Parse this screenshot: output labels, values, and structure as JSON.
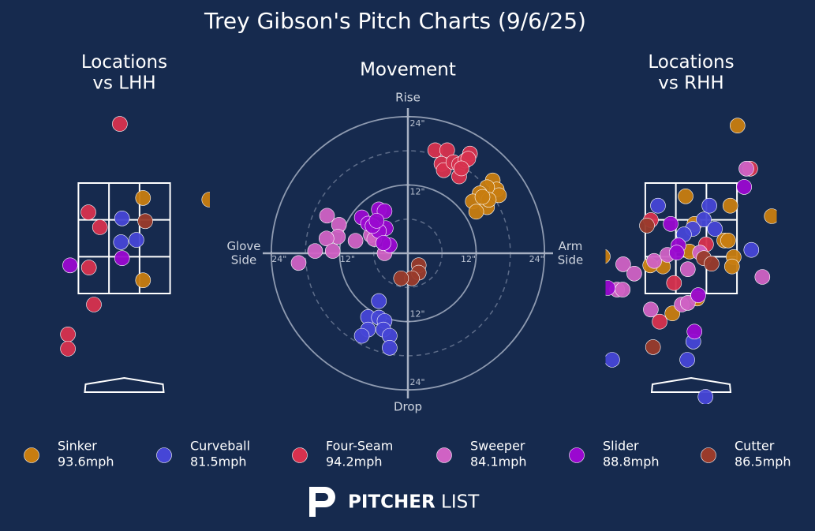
{
  "title": "Trey Gibson's Pitch Charts (9/6/25)",
  "pitches": [
    {
      "name": "Sinker",
      "speed": "93.6mph",
      "color": "#c87d10"
    },
    {
      "name": "Curveball",
      "speed": "81.5mph",
      "color": "#4646d6"
    },
    {
      "name": "Four-Seam",
      "speed": "94.2mph",
      "color": "#d7314e"
    },
    {
      "name": "Sweeper",
      "speed": "84.1mph",
      "color": "#d062c4"
    },
    {
      "name": "Slider",
      "speed": "88.8mph",
      "color": "#9a08d0"
    },
    {
      "name": "Cutter",
      "speed": "86.5mph",
      "color": "#9a3b2b"
    }
  ],
  "logo": [
    "PITCHER",
    "LIST"
  ],
  "chart_data": [
    {
      "type": "location",
      "title": "Locations\nvs LHH",
      "xlim": [
        -1.55,
        1.55
      ],
      "ylim": [
        -0.5,
        5
      ],
      "series": [
        {
          "x": [
            0.34,
            0.34,
            1.54
          ],
          "y": [
            3.23,
            1.74,
            3.2
          ]
        },
        {
          "x": [
            -0.04,
            -0.06,
            0.22
          ],
          "y": [
            2.86,
            2.43,
            2.47
          ]
        },
        {
          "x": [
            -0.08,
            -0.65,
            -0.44,
            -0.64,
            -0.55,
            -1.02,
            -1.02
          ],
          "y": [
            4.57,
            2.97,
            2.7,
            1.97,
            1.3,
            0.76,
            0.5
          ]
        },
        {
          "x": [],
          "y": []
        },
        {
          "x": [
            -0.98,
            -0.04
          ],
          "y": [
            2.01,
            2.14
          ]
        },
        {
          "x": [
            0.38
          ],
          "y": [
            2.81
          ]
        }
      ]
    },
    {
      "type": "movement",
      "title": "Movement",
      "xlim": [
        -25.5,
        25.5
      ],
      "ylim": [
        -25.5,
        25.5
      ],
      "top_label": "Rise",
      "bottom_label": "Drop",
      "left_label": "Glove\nSide",
      "right_label": "Arm\nSide",
      "xticks": [
        {
          "value": -24,
          "label": "24\""
        },
        {
          "value": -12,
          "label": "12\""
        },
        {
          "value": 12,
          "label": "12\""
        },
        {
          "value": 24,
          "label": "24\""
        }
      ],
      "yticks": [
        {
          "value": 24,
          "label": "24\""
        },
        {
          "value": 12,
          "label": "12\""
        },
        {
          "value": -12,
          "label": "12\""
        },
        {
          "value": -24,
          "label": "24\""
        }
      ],
      "series": [
        {
          "x": [
            14.9,
            15.6,
            16.0,
            13.9,
            12.6,
            11.4,
            13.9,
            12.0,
            14.2,
            13.1
          ],
          "y": [
            12.8,
            11.2,
            10.2,
            11.6,
            10.5,
            9.1,
            8.1,
            7.3,
            9.4,
            9.9
          ]
        },
        {
          "x": [
            -5.1,
            -7.0,
            -5.1,
            -4.1,
            -7.0,
            -8.1,
            -4.3,
            -3.2,
            -3.2
          ],
          "y": [
            -8.4,
            -11.2,
            -11.3,
            -11.9,
            -13.4,
            -14.5,
            -13.4,
            -14.5,
            -16.6
          ]
        },
        {
          "x": [
            4.8,
            6.9,
            5.9,
            6.3,
            8.0,
            9.0,
            10.1,
            10.9,
            9.0,
            10.6,
            9.4
          ],
          "y": [
            18.1,
            18.1,
            15.7,
            14.6,
            16.0,
            15.6,
            16.3,
            17.5,
            13.5,
            16.6,
            14.9
          ]
        },
        {
          "x": [
            -14.2,
            -12.1,
            -12.3,
            -14.3,
            -16.3,
            -13.2,
            -9.2,
            -6.5,
            -5.9,
            -4.1,
            -19.2
          ],
          "y": [
            6.6,
            5.0,
            2.9,
            2.6,
            0.4,
            0.4,
            2.2,
            3.2,
            2.5,
            0,
            -1.7
          ]
        },
        {
          "x": [
            -8.1,
            -7.0,
            -5.1,
            -4.1,
            -3.9,
            -5.1,
            -3.2,
            -4.3,
            -6.2,
            -5.5
          ],
          "y": [
            6.3,
            5.2,
            7.7,
            7.4,
            4.4,
            3.9,
            1.4,
            1.8,
            4.8,
            5.7
          ]
        },
        {
          "x": [
            1.9,
            1.9,
            0.7,
            -1.2
          ],
          "y": [
            -2.1,
            -3.4,
            -4.4,
            -4.4
          ]
        }
      ]
    },
    {
      "type": "location",
      "title": "Locations\nvs RHH",
      "xlim": [
        -1.55,
        1.55
      ],
      "ylim": [
        -0.5,
        5
      ],
      "series": [
        {
          "x": [
            0.84,
            -0.1,
            0.71,
            1.46,
            0.06,
            0.6,
            0.67,
            -0.03,
            0.77,
            0.74,
            -0.51,
            -0.74,
            0.11,
            -0.34,
            -1.6
          ],
          "y": [
            4.54,
            3.26,
            3.09,
            2.9,
            2.76,
            2.46,
            2.46,
            2.26,
            2.16,
            1.99,
            1.99,
            2.01,
            1.41,
            1.14,
            2.17
          ]
        },
        {
          "x": [
            -0.6,
            0.33,
            0.23,
            0.03,
            -0.13,
            0.43,
            1.09,
            0.04,
            -0.07,
            -1.43,
            0.26
          ],
          "y": [
            3.09,
            3.09,
            2.84,
            2.67,
            2.57,
            2.67,
            2.29,
            0.63,
            0.3,
            0.3,
            -0.37
          ]
        },
        {
          "x": [
            -0.73,
            1.07,
            0.27,
            -0.31,
            -0.57
          ],
          "y": [
            2.83,
            3.76,
            2.39,
            1.69,
            0.99
          ]
        },
        {
          "x": [
            1.0,
            -1.23,
            -1.03,
            -0.67,
            -0.43,
            -0.06,
            0.16,
            1.29,
            -1.34,
            -1.24,
            -0.73,
            -0.17,
            -0.06
          ],
          "y": [
            3.76,
            2.03,
            1.86,
            2.09,
            2.2,
            1.94,
            2.24,
            1.8,
            1.57,
            1.57,
            1.21,
            1.3,
            1.33
          ]
        },
        {
          "x": [
            0.96,
            -0.37,
            -0.23,
            -0.26,
            0.13,
            0.06,
            -1.51
          ],
          "y": [
            3.43,
            2.76,
            2.37,
            2.24,
            1.47,
            0.81,
            1.6
          ]
        },
        {
          "x": [
            -0.8,
            0.23,
            0.37,
            -0.69
          ],
          "y": [
            2.73,
            2.14,
            2.04,
            0.53
          ]
        }
      ]
    }
  ]
}
